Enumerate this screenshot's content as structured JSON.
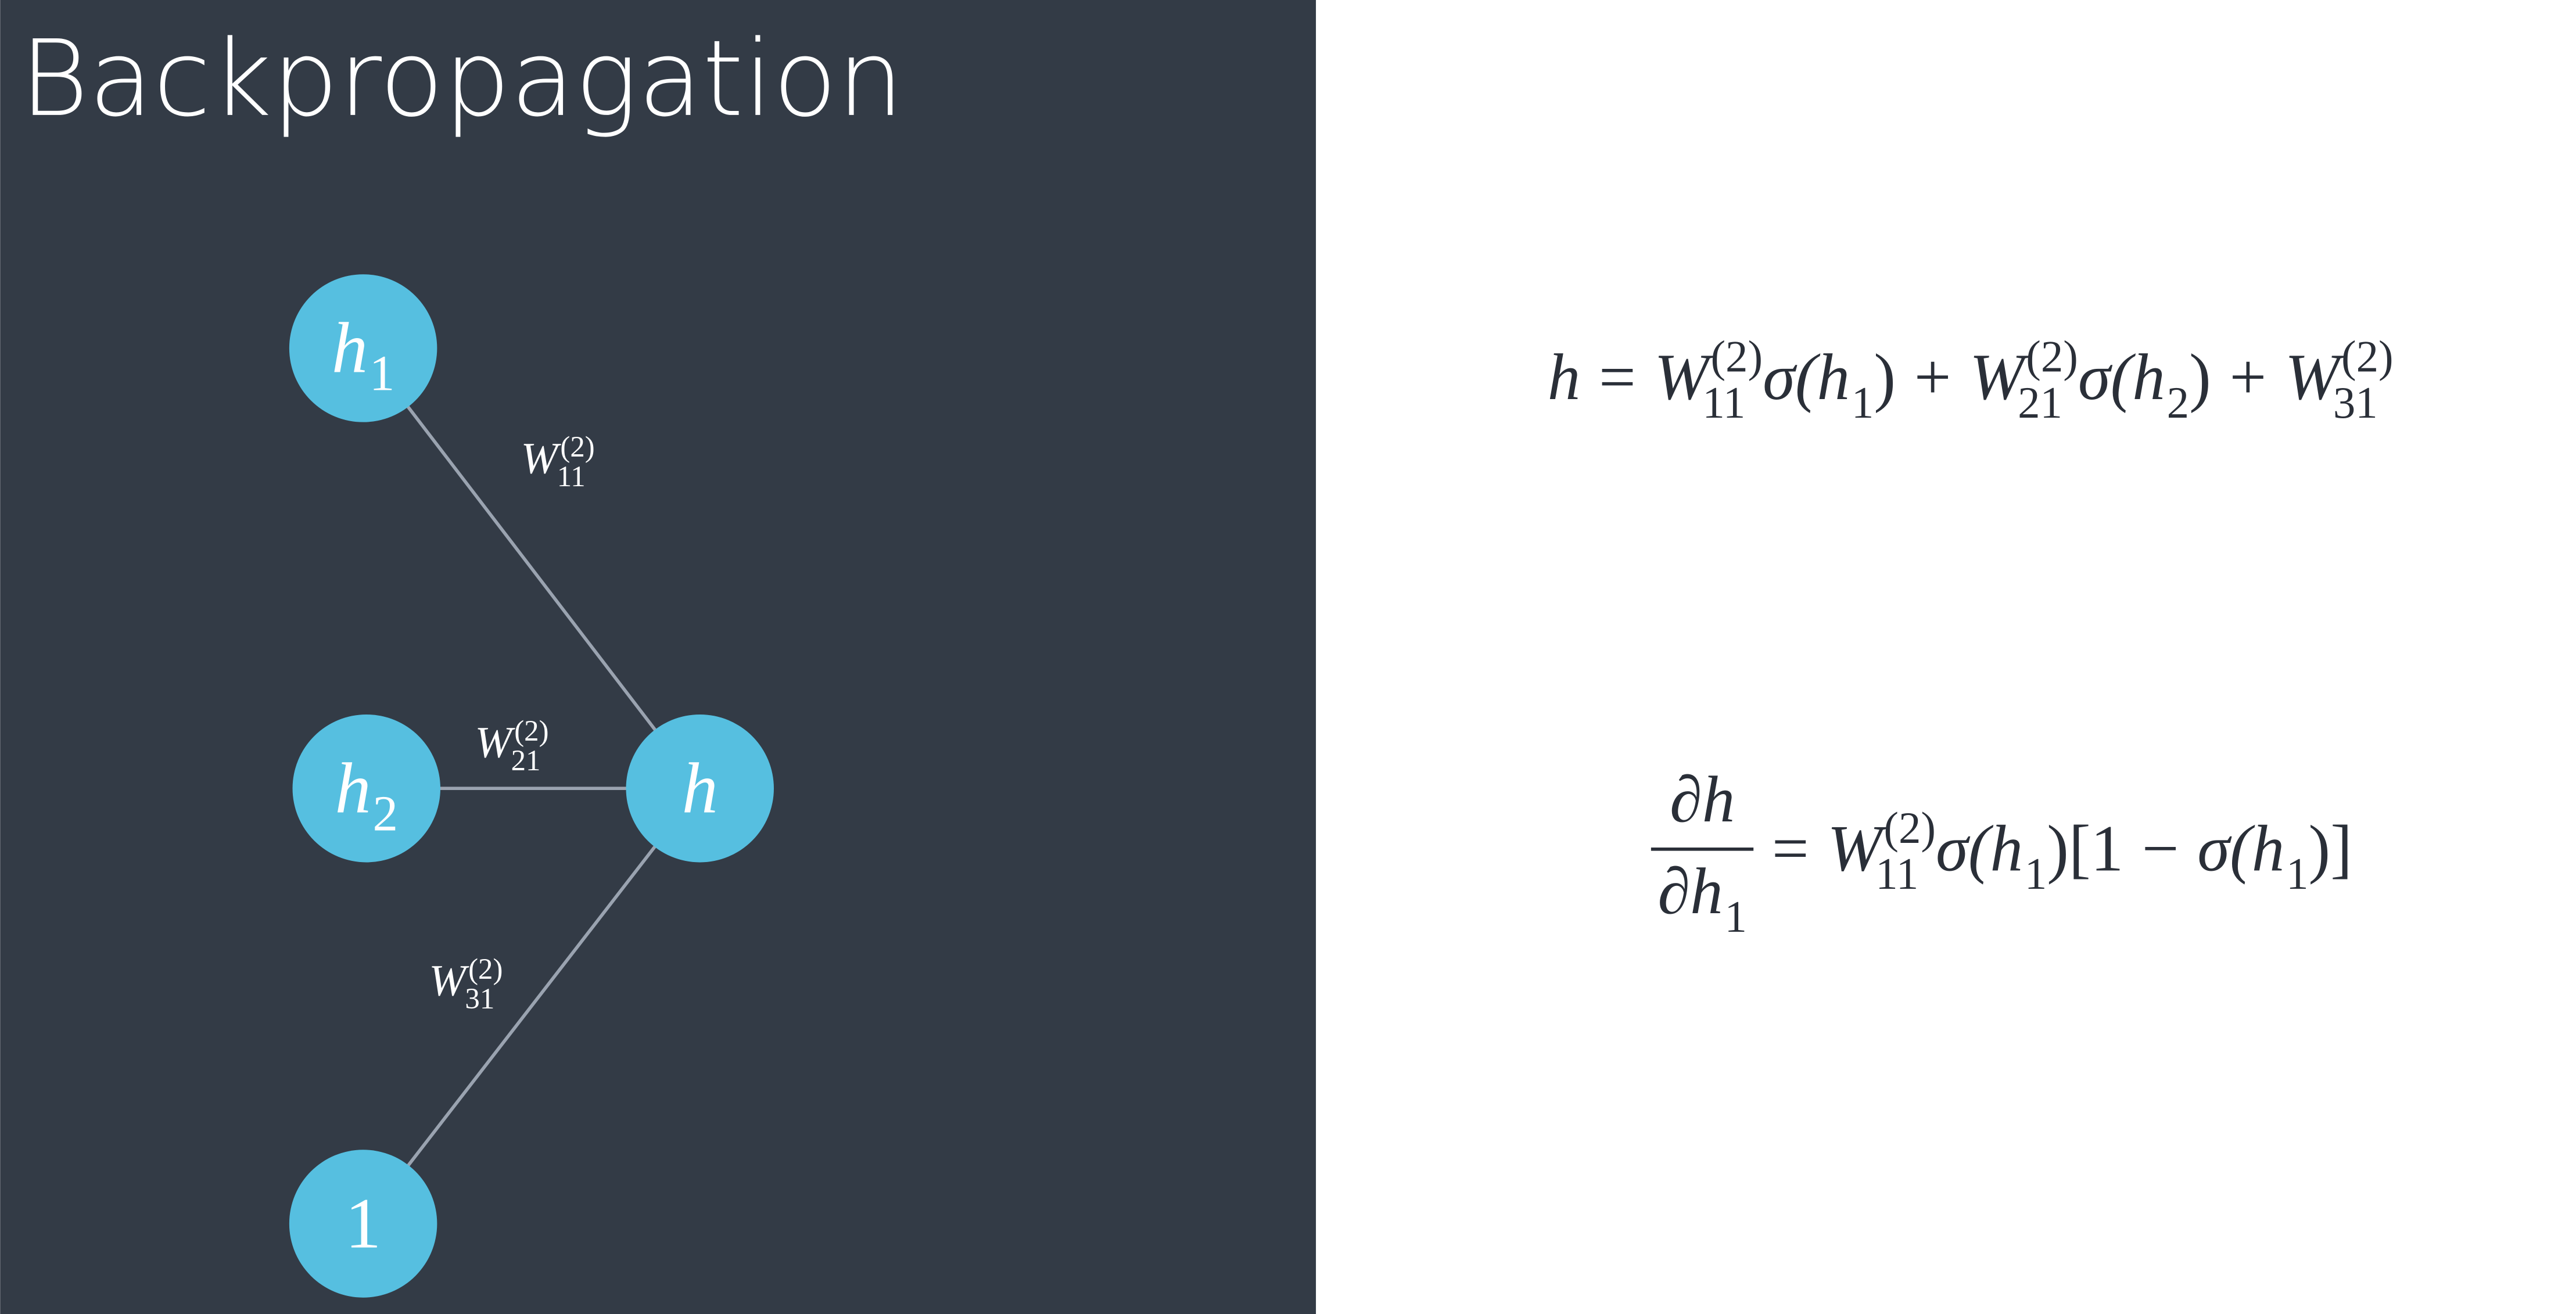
{
  "header": {
    "title": "Backpropagation"
  },
  "nodes": [
    {
      "label": "h",
      "sub": "1"
    },
    {
      "label": "h",
      "sub": "2"
    },
    {
      "label": "h"
    },
    {
      "label": "1"
    }
  ],
  "edges": [
    {
      "label": "W",
      "sub": "11",
      "sup": "(2)"
    },
    {
      "label": "W",
      "sub": "21",
      "sup": "(2)"
    },
    {
      "label": "W",
      "sub": "31",
      "sup": "(2)"
    }
  ],
  "equations": [
    {
      "parts": [
        {
          "text": "h"
        },
        {
          "text": "="
        },
        {
          "text": "W",
          "sub": "11",
          "sup": "(2)"
        },
        {
          "text": "σ("
        },
        {
          "text": "h",
          "sub": "1"
        },
        {
          "text": ")"
        },
        {
          "text": "+"
        },
        {
          "text": "W",
          "sub": "21",
          "sup": "(2)"
        },
        {
          "text": "σ("
        },
        {
          "text": "h",
          "sub": "2"
        },
        {
          "text": ")"
        },
        {
          "text": "+"
        },
        {
          "text": "W",
          "sub": "31",
          "sup": "(2)"
        }
      ]
    },
    {
      "numerator": [
        {
          "text": "∂h"
        }
      ],
      "denominator": [
        {
          "text": "∂h",
          "sub": "1"
        }
      ],
      "parts": [
        {
          "text": "="
        },
        {
          "text": "W",
          "sub": "11",
          "sup": "(2)"
        },
        {
          "text": "σ("
        },
        {
          "text": "h",
          "sub": "1"
        },
        {
          "text": ")[1"
        },
        {
          "text": "−"
        },
        {
          "text": "σ("
        },
        {
          "text": "h",
          "sub": "1"
        },
        {
          "text": ")]"
        }
      ]
    }
  ]
}
